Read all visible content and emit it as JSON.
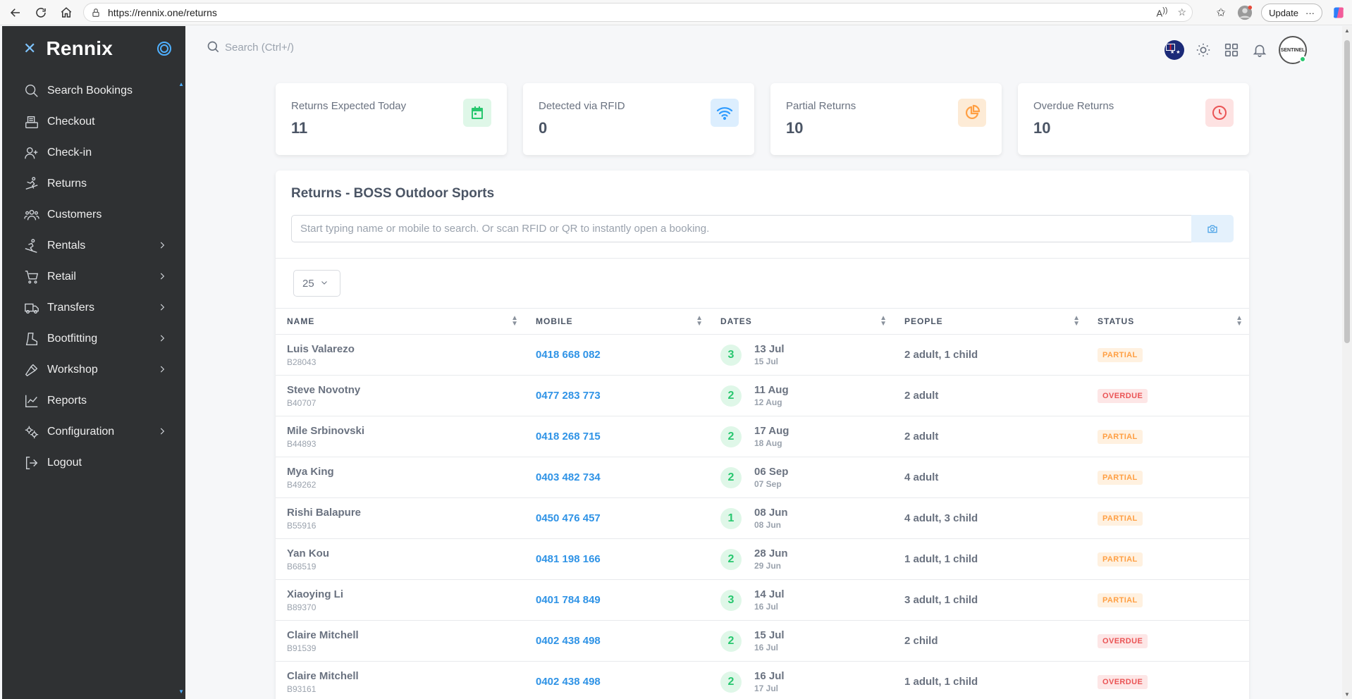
{
  "browser": {
    "url": "https://rennix.one/returns",
    "update_label": "Update"
  },
  "sidebar": {
    "brand": "Rennix",
    "items": [
      {
        "label": "Search Bookings",
        "icon": "search-icon",
        "has_submenu": false
      },
      {
        "label": "Checkout",
        "icon": "checkout-icon",
        "has_submenu": false
      },
      {
        "label": "Check-in",
        "icon": "user-plus-icon",
        "has_submenu": false
      },
      {
        "label": "Returns",
        "icon": "skier-icon",
        "has_submenu": false
      },
      {
        "label": "Customers",
        "icon": "users-icon",
        "has_submenu": false
      },
      {
        "label": "Rentals",
        "icon": "ski-icon",
        "has_submenu": true
      },
      {
        "label": "Retail",
        "icon": "cart-icon",
        "has_submenu": true
      },
      {
        "label": "Transfers",
        "icon": "truck-icon",
        "has_submenu": true
      },
      {
        "label": "Bootfitting",
        "icon": "boot-icon",
        "has_submenu": true
      },
      {
        "label": "Workshop",
        "icon": "hammer-icon",
        "has_submenu": true
      },
      {
        "label": "Reports",
        "icon": "chart-line-icon",
        "has_submenu": false
      },
      {
        "label": "Configuration",
        "icon": "gears-icon",
        "has_submenu": true
      },
      {
        "label": "Logout",
        "icon": "logout-icon",
        "has_submenu": false
      }
    ]
  },
  "topbar": {
    "search_placeholder": "Search (Ctrl+/)",
    "avatar_text": "SENTINEL"
  },
  "stats": [
    {
      "label": "Returns Expected Today",
      "value": "11",
      "icon": "calendar-icon",
      "color": "#28c76f"
    },
    {
      "label": "Detected via RFID",
      "value": "0",
      "icon": "wifi-icon",
      "color": "#2e9bff"
    },
    {
      "label": "Partial Returns",
      "value": "10",
      "icon": "pie-chart-icon",
      "color": "#ff9f43"
    },
    {
      "label": "Overdue Returns",
      "value": "10",
      "icon": "clock-icon",
      "color": "#ea5455"
    }
  ],
  "returns": {
    "title": "Returns - BOSS Outdoor Sports",
    "search_placeholder": "Start typing name or mobile to search. Or scan RFID or QR to instantly open a booking.",
    "page_size": "25",
    "columns": [
      "NAME",
      "MOBILE",
      "DATES",
      "PEOPLE",
      "STATUS"
    ],
    "rows": [
      {
        "name": "Luis Valarezo",
        "code": "B28043",
        "mobile": "0418 668 082",
        "days": "3",
        "start": "13 Jul",
        "end": "15 Jul",
        "people": "2 adult, 1 child",
        "status": "PARTIAL"
      },
      {
        "name": "Steve Novotny",
        "code": "B40707",
        "mobile": "0477 283 773",
        "days": "2",
        "start": "11 Aug",
        "end": "12 Aug",
        "people": "2 adult",
        "status": "OVERDUE"
      },
      {
        "name": "Mile Srbinovski",
        "code": "B44893",
        "mobile": "0418 268 715",
        "days": "2",
        "start": "17 Aug",
        "end": "18 Aug",
        "people": "2 adult",
        "status": "PARTIAL"
      },
      {
        "name": "Mya King",
        "code": "B49262",
        "mobile": "0403 482 734",
        "days": "2",
        "start": "06 Sep",
        "end": "07 Sep",
        "people": "4 adult",
        "status": "PARTIAL"
      },
      {
        "name": "Rishi Balapure",
        "code": "B55916",
        "mobile": "0450 476 457",
        "days": "1",
        "start": "08 Jun",
        "end": "08 Jun",
        "people": "4 adult, 3 child",
        "status": "PARTIAL"
      },
      {
        "name": "Yan Kou",
        "code": "B68519",
        "mobile": "0481 198 166",
        "days": "2",
        "start": "28 Jun",
        "end": "29 Jun",
        "people": "1 adult, 1 child",
        "status": "PARTIAL"
      },
      {
        "name": "Xiaoying Li",
        "code": "B89370",
        "mobile": "0401 784 849",
        "days": "3",
        "start": "14 Jul",
        "end": "16 Jul",
        "people": "3 adult, 1 child",
        "status": "PARTIAL"
      },
      {
        "name": "Claire Mitchell",
        "code": "B91539",
        "mobile": "0402 438 498",
        "days": "2",
        "start": "15 Jul",
        "end": "16 Jul",
        "people": "2 child",
        "status": "OVERDUE"
      },
      {
        "name": "Claire Mitchell",
        "code": "B93161",
        "mobile": "0402 438 498",
        "days": "2",
        "start": "16 Jul",
        "end": "17 Jul",
        "people": "1 adult, 1 child",
        "status": "OVERDUE"
      }
    ]
  }
}
